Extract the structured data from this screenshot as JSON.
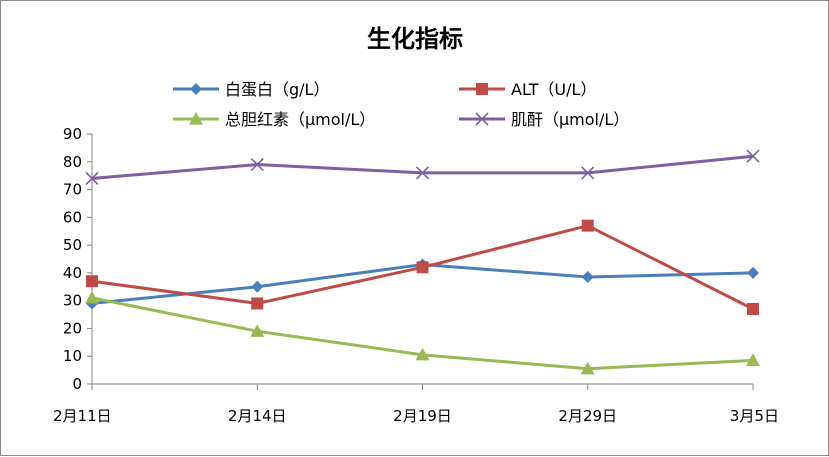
{
  "chart_data": {
    "type": "line",
    "title": "生化指标",
    "categories": [
      "2月11日",
      "2月14日",
      "2月19日",
      "2月29日",
      "3月5日"
    ],
    "ylim": [
      0,
      90
    ],
    "yticks": [
      0,
      10,
      20,
      30,
      40,
      50,
      60,
      70,
      80,
      90
    ],
    "grid": false,
    "legend": "top",
    "series": [
      {
        "name": "白蛋白（g/L）",
        "color": "#4a7ebb",
        "marker": "diamond",
        "values": [
          29,
          35,
          43,
          38.5,
          40
        ]
      },
      {
        "name": "ALT（U/L）",
        "color": "#be4b48",
        "marker": "square",
        "values": [
          37,
          29,
          42,
          57,
          27
        ]
      },
      {
        "name": "总胆红素（μmol/L）",
        "color": "#98b954",
        "marker": "triangle",
        "values": [
          31,
          19,
          10.5,
          5.5,
          8.5
        ]
      },
      {
        "name": "肌酐（μmol/L）",
        "color": "#7d60a0",
        "marker": "x",
        "values": [
          74,
          79,
          76,
          76,
          82
        ]
      }
    ]
  }
}
